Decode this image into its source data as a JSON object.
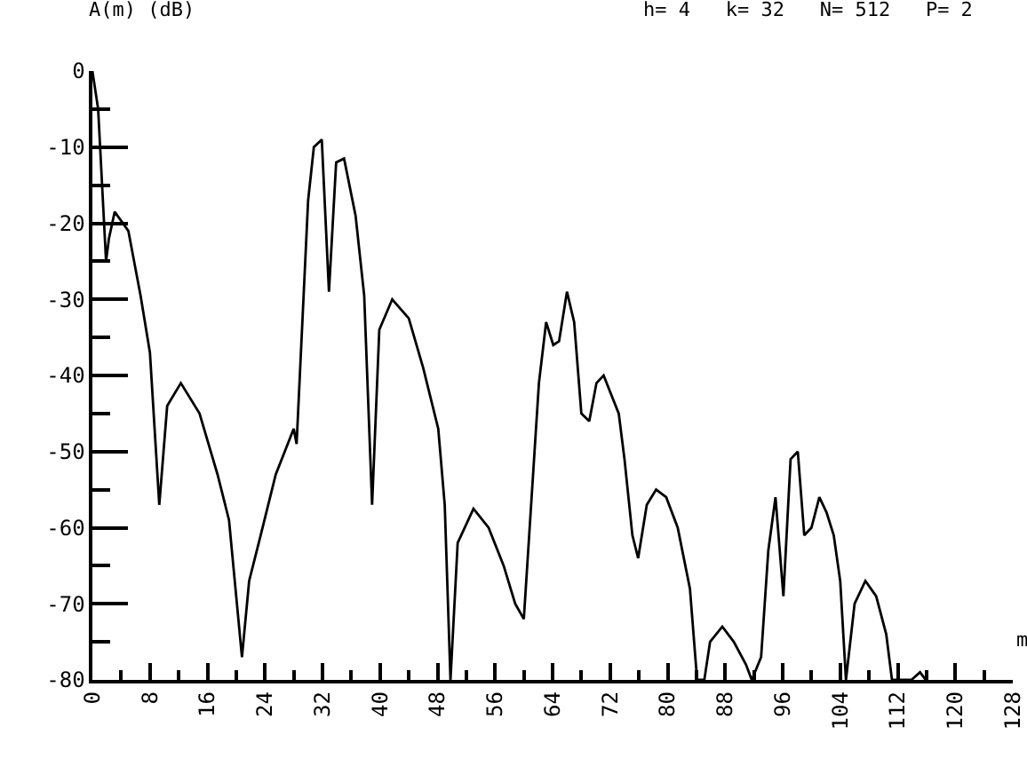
{
  "chart_data": {
    "type": "line",
    "title": "h= 4   k= 32   N= 512   P= 2",
    "xlabel": "m",
    "ylabel": "A(m) (dB)",
    "x": [
      0,
      0.8,
      1.9,
      2.3,
      3.1,
      5.0,
      6.7,
      8,
      9.3,
      10.4,
      12.3,
      14.9,
      17.4,
      19,
      20.8,
      21.8,
      23.4,
      25.5,
      28,
      28.4,
      30,
      30.8,
      31.9,
      32.9,
      33.9,
      35,
      36.6,
      37.8,
      38.9,
      39.9,
      41.7,
      44,
      46,
      48.1,
      49,
      49.8,
      50.8,
      53,
      55.1,
      57.2,
      58.8,
      60,
      62.1,
      63.1,
      64.1,
      64.9,
      66,
      67,
      68,
      69.1,
      70.1,
      71.1,
      73.2,
      74,
      75.1,
      75.9,
      77.1,
      78.4,
      79.8,
      81.4,
      83.1,
      84.1,
      85.1,
      85.9,
      87.6,
      89.2,
      90.9,
      91.7,
      93,
      94,
      95,
      96.1,
      97.1,
      98.1,
      99,
      100,
      101.1,
      102.1,
      103.1,
      104,
      104.8,
      106,
      107.5,
      109,
      110.4,
      111.2,
      113.9,
      115.1,
      115.9
    ],
    "series": [
      {
        "color": "#000000",
        "values": [
          0,
          -5,
          -25,
          -22,
          -18.5,
          -21,
          -29.5,
          -37,
          -57,
          -44,
          -41,
          -45,
          -53,
          -59,
          -77,
          -67,
          -61,
          -53,
          -47,
          -49,
          -17,
          -10,
          -9,
          -29,
          -12,
          -11.5,
          -19,
          -29.5,
          -57,
          -34,
          -30,
          -32.5,
          -39,
          -47,
          -57,
          -80,
          -62,
          -57.5,
          -60,
          -65,
          -70,
          -72,
          -41,
          -33,
          -36,
          -35.5,
          -29,
          -33,
          -45,
          -46,
          -41,
          -40,
          -45,
          -51,
          -61,
          -64,
          -57,
          -55,
          -56,
          -60,
          -68,
          -80,
          -80,
          -75,
          -73,
          -75,
          -78,
          -80,
          -77,
          -63,
          -56,
          -69,
          -51,
          -50,
          -61,
          -60,
          -56,
          -58,
          -61,
          -67,
          -80,
          -70,
          -67,
          -69,
          -74,
          -80,
          -80,
          -79,
          -80
        ]
      }
    ],
    "xlim": [
      0,
      128
    ],
    "xticks": [
      0,
      8,
      16,
      24,
      32,
      40,
      48,
      56,
      64,
      72,
      80,
      88,
      96,
      104,
      112,
      120,
      128
    ],
    "ylim": [
      -80,
      0
    ],
    "yticks": [
      0,
      -10,
      -20,
      -30,
      -40,
      -50,
      -60,
      -70,
      -80
    ],
    "line_style": "solid",
    "marker": "none"
  }
}
